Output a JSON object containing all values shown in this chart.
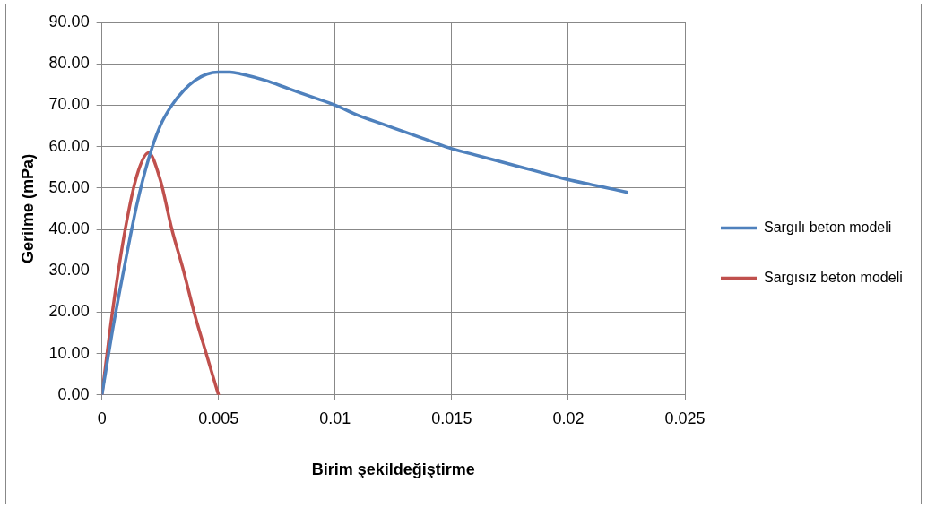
{
  "chart_data": {
    "type": "line",
    "xlabel": "Birim şekildeğiştirme",
    "ylabel": "Gerilme (mPa)",
    "xlim": [
      0,
      0.025
    ],
    "xticks": [
      0,
      0.005,
      0.01,
      0.015,
      0.02,
      0.025
    ],
    "ylim": [
      0,
      90
    ],
    "yticks": [
      {
        "value": 0,
        "label": "0.00"
      },
      {
        "value": 10,
        "label": "10.00"
      },
      {
        "value": 20,
        "label": "20.00"
      },
      {
        "value": 30,
        "label": "30.00"
      },
      {
        "value": 40,
        "label": "40.00"
      },
      {
        "value": 50,
        "label": "50.00"
      },
      {
        "value": 60,
        "label": "60.00"
      },
      {
        "value": 70,
        "label": "70.00"
      },
      {
        "value": 80,
        "label": "80.00"
      },
      {
        "value": 90,
        "label": "90.00"
      }
    ],
    "grid": true,
    "legend": "right",
    "marker": "none",
    "line_style": "solid",
    "series": [
      {
        "name": "Sargılı beton modeli",
        "color": "#4f81bd",
        "x": [
          0,
          0.0005,
          0.001,
          0.0015,
          0.002,
          0.0025,
          0.003,
          0.0035,
          0.004,
          0.0045,
          0.005,
          0.0055,
          0.006,
          0.007,
          0.008,
          0.009,
          0.01,
          0.011,
          0.012,
          0.013,
          0.014,
          0.015,
          0.016,
          0.017,
          0.018,
          0.019,
          0.02,
          0.021,
          0.022,
          0.0225
        ],
        "values": [
          0,
          17,
          32,
          46,
          57,
          65,
          70,
          73.5,
          76,
          77.5,
          78,
          78,
          77.5,
          76,
          74,
          72,
          70,
          67.5,
          65.5,
          63.5,
          61.5,
          59.5,
          58,
          56.5,
          55,
          53.5,
          52,
          50.8,
          49.6,
          49
        ]
      },
      {
        "name": "Sargısız beton modeli",
        "color": "#c0504d",
        "x": [
          0,
          0.0005,
          0.001,
          0.0015,
          0.002,
          0.0025,
          0.003,
          0.0035,
          0.004,
          0.0045,
          0.005
        ],
        "values": [
          0,
          22,
          40,
          53,
          58.5,
          52,
          40,
          30,
          19,
          9.5,
          0
        ]
      }
    ]
  }
}
